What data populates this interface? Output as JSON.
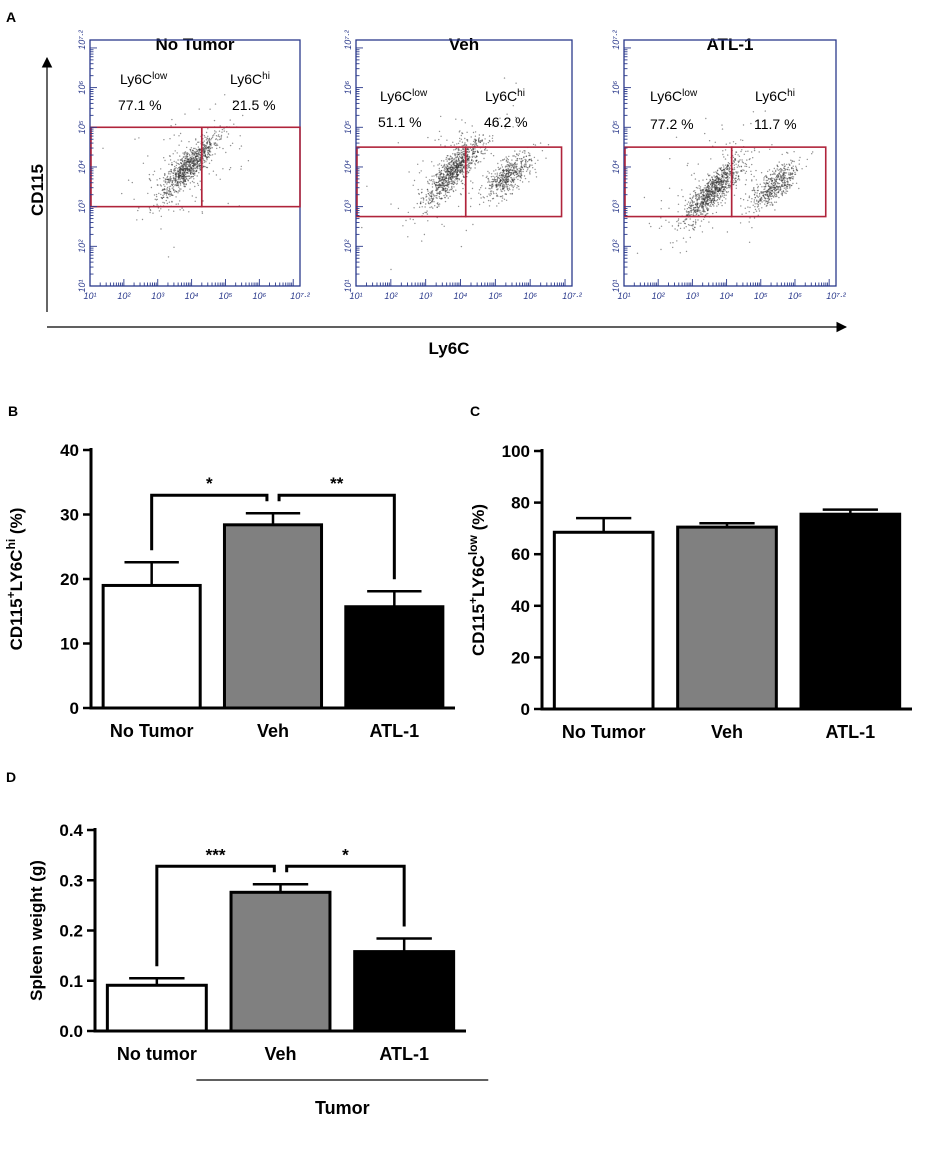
{
  "chart_data": [
    {
      "panel_label": "A",
      "type": "scatter",
      "x_axis_label": "Ly6C",
      "y_axis_label": "CD115",
      "axis_log_range": [
        1,
        7.2
      ],
      "tick_labels": [
        "10¹",
        "10²",
        "10³",
        "10⁴",
        "10⁵",
        "10⁶",
        "10⁷·²"
      ],
      "gate_low_label": "Ly6C",
      "gate_low_sup": "low",
      "gate_hi_label": "Ly6C",
      "gate_hi_sup": "hi",
      "plots": [
        {
          "title": "No Tumor",
          "ly6c_low_pct": "77.1 %",
          "ly6c_hi_pct": "21.5 %",
          "gate_x_log": [
            1,
            4.3,
            7.2
          ],
          "gate_y_log": [
            3.0,
            5.0
          ],
          "cluster_center_log": [
            3.9,
            4.0
          ],
          "cluster_hi_center_log": null
        },
        {
          "title": "Veh",
          "ly6c_low_pct": "51.1 %",
          "ly6c_hi_pct": "46.2 %",
          "gate_x_log": [
            1,
            4.15,
            6.9
          ],
          "gate_y_log": [
            2.75,
            4.5
          ],
          "cluster_center_log": [
            3.8,
            3.9
          ],
          "cluster_hi_center_log": [
            5.4,
            3.8
          ]
        },
        {
          "title": "ATL-1",
          "ly6c_low_pct": "77.2 %",
          "ly6c_hi_pct": "11.7 %",
          "gate_x_log": [
            1,
            4.15,
            6.9
          ],
          "gate_y_log": [
            2.75,
            4.5
          ],
          "cluster_center_log": [
            3.6,
            3.4
          ],
          "cluster_hi_center_log": [
            5.4,
            3.5
          ]
        }
      ]
    },
    {
      "panel_label": "B",
      "type": "bar",
      "categories": [
        "No Tumor",
        "Veh",
        "ATL-1"
      ],
      "values": [
        19.0,
        28.4,
        15.7
      ],
      "errors": [
        3.6,
        1.8,
        2.4
      ],
      "colors": [
        "#ffffff",
        "#808080",
        "#000000"
      ],
      "ylabel_main": "CD115",
      "ylabel_sup1": "+",
      "ylabel_mid": "LY6C",
      "ylabel_sup2": "hi",
      "ylabel_end": " (%)",
      "ylim": [
        0,
        40
      ],
      "yticks": [
        "0",
        "10",
        "20",
        "30",
        "40"
      ],
      "significance": [
        {
          "from": 0,
          "to": 1,
          "label": "*"
        },
        {
          "from": 1,
          "to": 2,
          "label": "**"
        }
      ]
    },
    {
      "panel_label": "C",
      "type": "bar",
      "categories": [
        "No Tumor",
        "Veh",
        "ATL-1"
      ],
      "values": [
        68.5,
        70.5,
        75.5
      ],
      "errors": [
        5.5,
        1.5,
        1.8
      ],
      "colors": [
        "#ffffff",
        "#808080",
        "#000000"
      ],
      "ylabel_main": "CD115",
      "ylabel_sup1": "+",
      "ylabel_mid": "LY6C",
      "ylabel_sup2": "low",
      "ylabel_end": " (%)",
      "ylim": [
        0,
        100
      ],
      "yticks": [
        "0",
        "20",
        "40",
        "60",
        "80",
        "100"
      ],
      "significance": []
    },
    {
      "panel_label": "D",
      "type": "bar",
      "categories": [
        "No tumor",
        "Veh",
        "ATL-1"
      ],
      "values": [
        0.091,
        0.276,
        0.158
      ],
      "errors": [
        0.014,
        0.016,
        0.026
      ],
      "colors": [
        "#ffffff",
        "#808080",
        "#000000"
      ],
      "ylabel_text": "Spleen weight (g)",
      "ylim": [
        0,
        0.4
      ],
      "yticks": [
        "0.0",
        "0.1",
        "0.2",
        "0.3",
        "0.4"
      ],
      "significance": [
        {
          "from": 0,
          "to": 1,
          "label": "***"
        },
        {
          "from": 1,
          "to": 2,
          "label": "*"
        }
      ],
      "group_label": "Tumor"
    }
  ]
}
